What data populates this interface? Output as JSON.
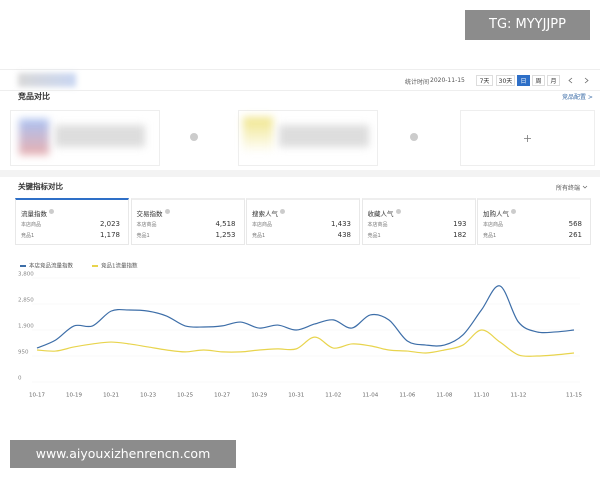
{
  "watermarks": {
    "top": "TG: MYYJJPP",
    "bottom": "www.aiyouxizhenrencn.com"
  },
  "header": {
    "time_label": "统计时间",
    "time_value": "2020-11-15",
    "ranges": [
      "7天",
      "30天",
      "日",
      "周",
      "月"
    ],
    "active_range_index": 2
  },
  "competitors": {
    "title": "竞品对比",
    "config_link": "竞品配置 >"
  },
  "metrics": {
    "title": "关键指标对比",
    "terminal": "所有终端",
    "active_tab_index": 0,
    "tabs": [
      {
        "name": "流量指数",
        "rows": [
          {
            "label": "本店商品",
            "value": "2,023"
          },
          {
            "label": "竞品1",
            "value": "1,178"
          }
        ]
      },
      {
        "name": "交易指数",
        "rows": [
          {
            "label": "本店商品",
            "value": "4,518"
          },
          {
            "label": "竞品1",
            "value": "1,253"
          }
        ]
      },
      {
        "name": "搜索人气",
        "rows": [
          {
            "label": "本店商品",
            "value": "1,433"
          },
          {
            "label": "竞品1",
            "value": "438"
          }
        ]
      },
      {
        "name": "收藏人气",
        "rows": [
          {
            "label": "本店商品",
            "value": "193"
          },
          {
            "label": "竞品1",
            "value": "182"
          }
        ]
      },
      {
        "name": "加购人气",
        "rows": [
          {
            "label": "本店商品",
            "value": "568"
          },
          {
            "label": "竞品1",
            "value": "261"
          }
        ]
      }
    ]
  },
  "chart_data": {
    "type": "line",
    "categories": [
      "10-17",
      null,
      "10-19",
      null,
      "10-21",
      null,
      "10-23",
      null,
      "10-25",
      null,
      "10-27",
      null,
      "10-29",
      null,
      "10-31",
      null,
      "11-02",
      null,
      "11-04",
      null,
      "11-06",
      null,
      "11-08",
      null,
      "11-10",
      null,
      "11-12",
      null,
      null,
      "11-15"
    ],
    "series": [
      {
        "name": "本店竞品流量指数",
        "color": "#3d6ea8",
        "values": [
          1240,
          1530,
          2050,
          2050,
          2590,
          2630,
          2590,
          2410,
          2050,
          2010,
          2050,
          2190,
          1970,
          2080,
          1900,
          2120,
          2270,
          1970,
          2450,
          2270,
          1500,
          1350,
          1350,
          1720,
          2630,
          3510,
          2190,
          1830,
          1830,
          1900
        ]
      },
      {
        "name": "竞品1流量指数",
        "color": "#e8d44d",
        "values": [
          1170,
          1130,
          1280,
          1390,
          1460,
          1390,
          1280,
          1170,
          1100,
          1170,
          1100,
          1100,
          1170,
          1210,
          1210,
          1640,
          1240,
          1390,
          1320,
          1170,
          1130,
          1060,
          1170,
          1350,
          1900,
          1460,
          990,
          950,
          990,
          1060
        ]
      }
    ],
    "ylim": [
      0,
      3800
    ],
    "yticks": [
      0,
      950,
      {
        "value": 1900,
        "label": "1,900"
      },
      {
        "value": 2850,
        "label": "2,850"
      },
      {
        "value": 3800,
        "label": "3,800"
      }
    ],
    "grid": true
  }
}
